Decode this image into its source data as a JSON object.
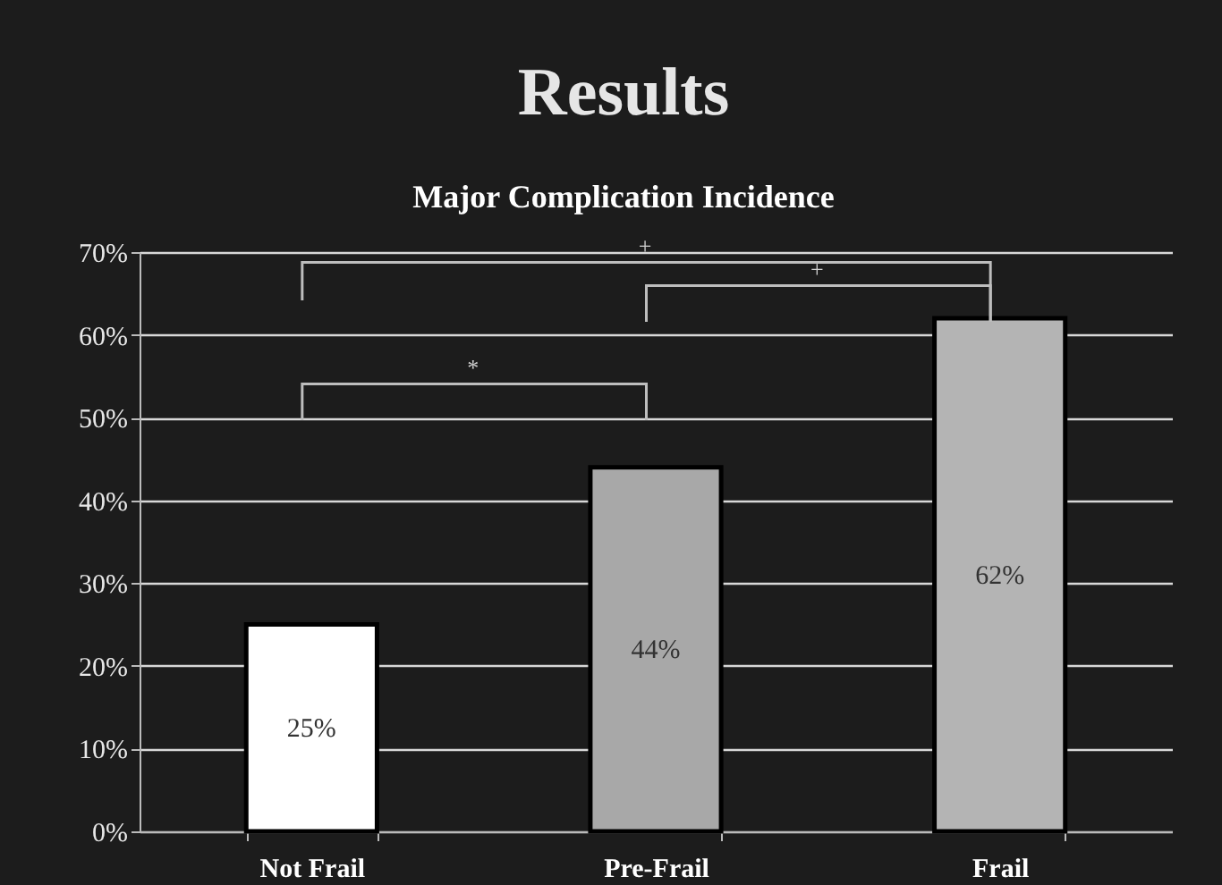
{
  "chart_data": {
    "type": "bar",
    "title": "Results",
    "subtitle": "Major Complication Incidence",
    "categories": [
      "Not Frail",
      "Pre-Frail",
      "Frail"
    ],
    "values": [
      25,
      44,
      62
    ],
    "colors": [
      "#ffffff",
      "#a8a8a8",
      "#b4b4b4"
    ],
    "value_labels": [
      "25%",
      "44%",
      "62%"
    ],
    "annotations": [
      "+",
      "+",
      "*"
    ],
    "ylim": [
      0,
      70
    ],
    "yticks": [
      {
        "value": 0,
        "label": "0%"
      },
      {
        "value": 10,
        "label": "10%"
      },
      {
        "value": 20,
        "label": "20%"
      },
      {
        "value": 30,
        "label": "30%"
      },
      {
        "value": 40,
        "label": "40%"
      },
      {
        "value": 50,
        "label": "50%"
      },
      {
        "value": 60,
        "label": "60%"
      },
      {
        "value": 70,
        "label": "70%"
      }
    ],
    "grid": "y",
    "legend": false
  }
}
